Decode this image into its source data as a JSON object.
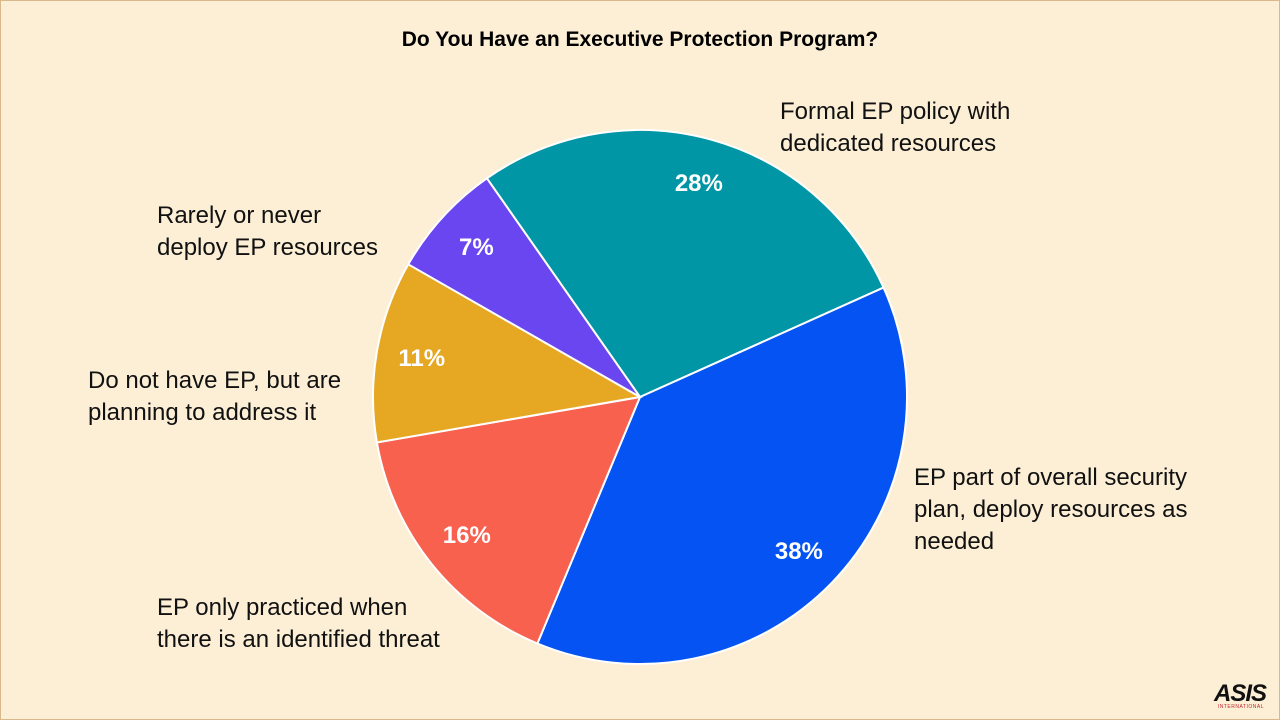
{
  "chart_data": {
    "type": "pie",
    "title": "Do You Have an Executive Protection Program?",
    "slices": [
      {
        "label": "Formal EP policy with dedicated resources",
        "label_lines": [
          "Formal EP policy with",
          "dedicated resources"
        ],
        "value": 28,
        "value_label": "28%",
        "color": "#0096a5"
      },
      {
        "label": "EP part of overall security plan, deploy resources as needed",
        "label_lines": [
          "EP part of overall security",
          "plan, deploy resources as",
          "needed"
        ],
        "value": 38,
        "value_label": "38%",
        "color": "#0553f2"
      },
      {
        "label": "EP only practiced when there is an identified threat",
        "label_lines": [
          "EP only practiced when",
          "there is an identified threat"
        ],
        "value": 16,
        "value_label": "16%",
        "color": "#f7614e"
      },
      {
        "label": "Do not have EP, but are planning to address it",
        "label_lines": [
          "Do not have EP, but are",
          "planning to address it"
        ],
        "value": 11,
        "value_label": "11%",
        "color": "#e6a823"
      },
      {
        "label": "Rarely or never deploy EP resources",
        "label_lines": [
          "Rarely or never",
          "deploy EP resources"
        ],
        "value": 7,
        "value_label": "7%",
        "color": "#6a46f1"
      }
    ]
  },
  "logo": {
    "main": "ASIS",
    "sub": "INTERNATIONAL"
  }
}
